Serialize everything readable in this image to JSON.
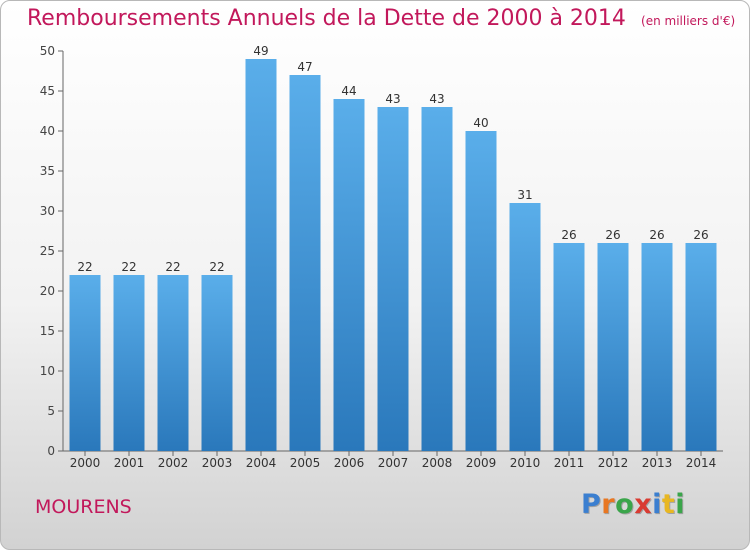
{
  "chart_data": {
    "type": "bar",
    "title": "Remboursements Annuels de la Dette de 2000 à 2014",
    "unit_note": "(en milliers d'€)",
    "categories": [
      "2000",
      "2001",
      "2002",
      "2003",
      "2004",
      "2005",
      "2006",
      "2007",
      "2008",
      "2009",
      "2010",
      "2011",
      "2012",
      "2013",
      "2014"
    ],
    "values": [
      22,
      22,
      22,
      22,
      49,
      47,
      44,
      43,
      43,
      40,
      31,
      26,
      26,
      26,
      26
    ],
    "ylim": [
      0,
      50
    ],
    "yticks": [
      0,
      5,
      10,
      15,
      20,
      25,
      30,
      35,
      40,
      45,
      50
    ],
    "xlabel": "",
    "ylabel": "",
    "grid": false,
    "colors": {
      "bar_light": "#5aaeea",
      "bar_dark": "#2a78bb",
      "title": "#c2185b"
    }
  },
  "commune": "MOURENS",
  "logo": {
    "letters": [
      "P",
      "r",
      "o",
      "x",
      "i",
      "t",
      "i"
    ],
    "colors": [
      "#3b7fd0",
      "#e87722",
      "#3aa54a",
      "#d93b32",
      "#3b7fd0",
      "#e8b722",
      "#3aa54a"
    ]
  }
}
